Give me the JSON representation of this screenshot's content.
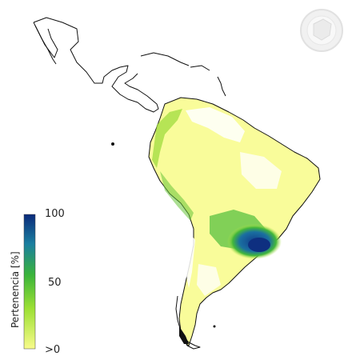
{
  "legend": {
    "title": "Pertenencia [%]",
    "ticks": [
      "100",
      "50",
      ">0"
    ],
    "colors": [
      "#0b2a7a",
      "#1a7fa0",
      "#3ab43a",
      "#9ce034",
      "#f8fb8a"
    ]
  },
  "emblem_icon": "seal-logo-icon",
  "colors": {
    "coast": "#111111",
    "low": "#fbfd93",
    "mid": "#43b83a",
    "high": "#123e8c",
    "ocean": "#ffffff"
  }
}
